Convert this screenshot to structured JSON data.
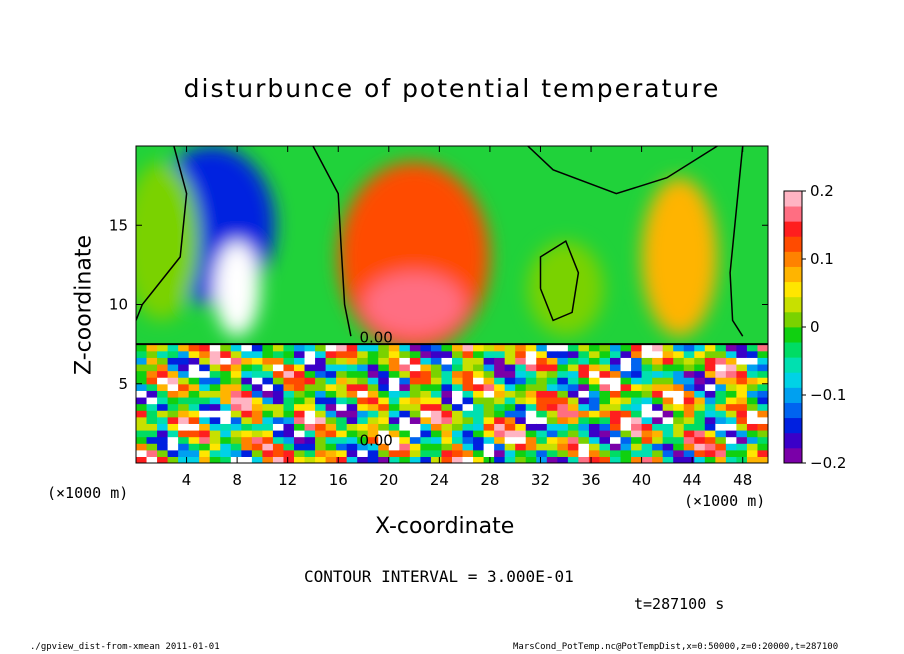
{
  "chart_data": {
    "type": "heatmap",
    "title": "disturbunce of potential temperature",
    "xlabel": "X-coordinate",
    "ylabel": "Z-coordinate",
    "x_unit_label": "(×1000 m)",
    "xlim": [
      0,
      50
    ],
    "ylim": [
      0,
      20
    ],
    "x_ticks": [
      4,
      8,
      12,
      16,
      20,
      24,
      28,
      32,
      36,
      40,
      44,
      48
    ],
    "y_ticks": [
      5,
      10,
      15
    ],
    "colorbar": {
      "ticks": [
        0.2,
        0.1,
        0,
        -0.1,
        -0.2
      ],
      "tick_labels": [
        "0.2",
        "0.1",
        "0",
        "−0.1",
        "−0.2"
      ],
      "range": [
        -0.2,
        0.2
      ],
      "colors": [
        "#7a00a8",
        "#3a00c8",
        "#0020e0",
        "#0064f0",
        "#00a0f0",
        "#00d2e6",
        "#00e0b0",
        "#00dc64",
        "#10d010",
        "#7ad200",
        "#c8e000",
        "#ffe600",
        "#ffb400",
        "#ff8200",
        "#ff4b00",
        "#ff1e1e",
        "#ff6e82",
        "#ffb4c3"
      ]
    },
    "contour_labels": [
      "0.00",
      "0.00"
    ],
    "contour_interval_text": "CONTOUR INTERVAL = 3.000E-01",
    "time_text": "t=287100 s",
    "regions": [
      {
        "x": 6,
        "z": 15,
        "value": -0.15,
        "rx": 5,
        "rz": 5
      },
      {
        "x": 8,
        "z": 11,
        "value": -0.25,
        "rx": 1.8,
        "rz": 3
      },
      {
        "x": 22,
        "z": 13,
        "value": 0.12,
        "rx": 6,
        "rz": 6
      },
      {
        "x": 22,
        "z": 10,
        "value": 0.17,
        "rx": 4,
        "rz": 2
      },
      {
        "x": 34,
        "z": 11,
        "value": 0.02,
        "rx": 3,
        "rz": 3
      },
      {
        "x": 43,
        "z": 13,
        "value": 0.08,
        "rx": 3,
        "rz": 5
      },
      {
        "x": 2,
        "z": 14,
        "value": 0.02,
        "rx": 3,
        "rz": 5
      }
    ]
  },
  "footer": {
    "left": "./gpview_dist-from-xmean  2011-01-01",
    "right": "MarsCond_PotTemp.nc@PotTempDist,x=0:50000,z=0:20000,t=287100"
  }
}
